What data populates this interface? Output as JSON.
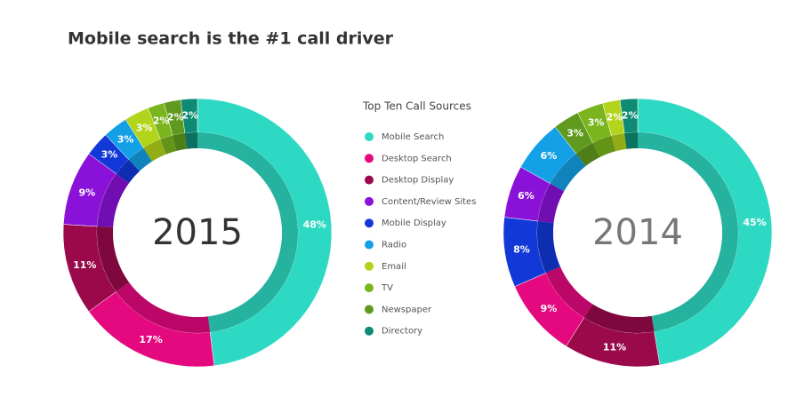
{
  "title": "Mobile search is the #1 call driver",
  "legend_title": "Top Ten Call Sources",
  "chart_data": [
    {
      "type": "pie",
      "center_label": "2015",
      "categories": [
        "Mobile Search",
        "Desktop Search",
        "Desktop Display",
        "Content/Review Sites",
        "Mobile Display",
        "Radio",
        "Email",
        "TV",
        "Newspaper",
        "Directory"
      ],
      "values": [
        48,
        17,
        11,
        9,
        3,
        3,
        3,
        2,
        2,
        2
      ],
      "value_labels": [
        "48%",
        "17%",
        "11%",
        "9%",
        "3%",
        "3%",
        "3%",
        "2%",
        "2%",
        "2%"
      ],
      "colors": [
        "#2ed9c3",
        "#e5097f",
        "#9a0a4b",
        "#8a12d8",
        "#1238d8",
        "#14a0e6",
        "#b2d41a",
        "#7ab51d",
        "#5f9a1e",
        "#0f8a74"
      ]
    },
    {
      "type": "pie",
      "center_label": "2014",
      "categories": [
        "Mobile Search",
        "Desktop Display",
        "Desktop Search",
        "Mobile Display",
        "Content/Review Sites",
        "Radio",
        "Newspaper",
        "TV",
        "Email",
        "Directory"
      ],
      "values": [
        45,
        11,
        9,
        8,
        6,
        6,
        3,
        3,
        2,
        2
      ],
      "value_labels": [
        "45%",
        "11%",
        "9%",
        "8%",
        "6%",
        "6%",
        "3%",
        "3%",
        "2%",
        "2%"
      ],
      "colors": [
        "#2ed9c3",
        "#9a0a4b",
        "#e5097f",
        "#1238d8",
        "#8a12d8",
        "#14a0e6",
        "#5f9a1e",
        "#7ab51d",
        "#b2d41a",
        "#0f8a74"
      ]
    }
  ]
}
